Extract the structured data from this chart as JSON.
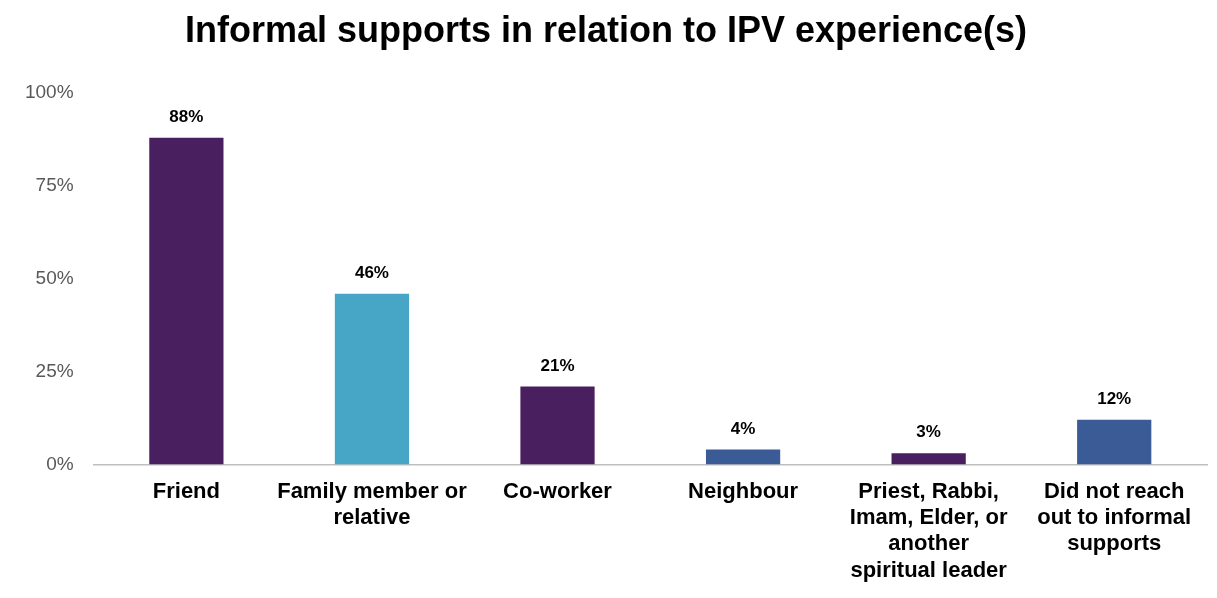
{
  "chart_data": {
    "type": "bar",
    "title": "Informal supports in relation to IPV experience(s)",
    "categories": [
      "Friend",
      "Family member or relative",
      "Co-worker",
      "Neighbour",
      "Priest, Rabbi, Imam, Elder, or another spiritual leader",
      "Did not reach out to informal supports"
    ],
    "values": [
      88,
      46,
      21,
      4,
      3,
      12
    ],
    "colors": [
      "#4a1f5f",
      "#47a6c5",
      "#4a1f5f",
      "#3b5b97",
      "#4a1f5f",
      "#3b5b97"
    ],
    "value_labels": [
      "88%",
      "46%",
      "21%",
      "4%",
      "3%",
      "12%"
    ],
    "ylim": [
      0,
      100
    ],
    "yticks": [
      {
        "value": 0,
        "label": "0%"
      },
      {
        "value": 25,
        "label": "25%"
      },
      {
        "value": 50,
        "label": "50%"
      },
      {
        "value": 75,
        "label": "75%"
      },
      {
        "value": 100,
        "label": "100%"
      }
    ],
    "grid": false,
    "legend": false
  }
}
